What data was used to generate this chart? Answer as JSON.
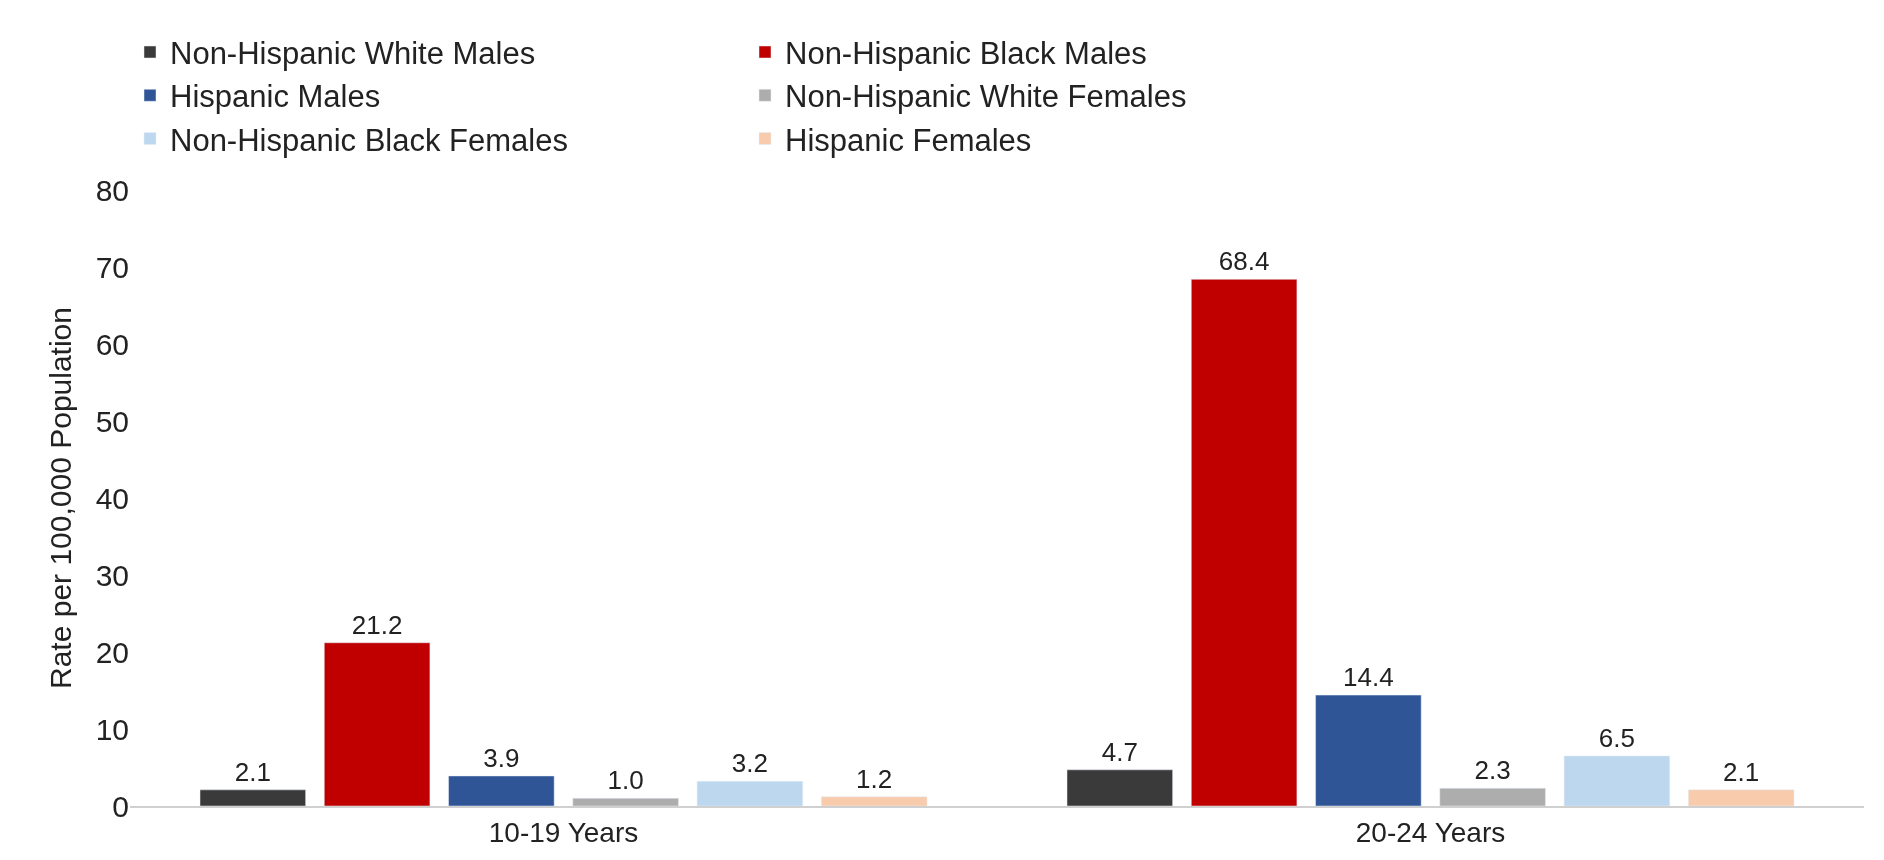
{
  "chart_data": {
    "type": "bar",
    "ylabel": "Rate per 100,000 Population",
    "categories": [
      "10-19 Years",
      "20-24 Years"
    ],
    "series": [
      {
        "name": "Non-Hispanic White Males",
        "color": "#3a3a3a",
        "values": [
          2.1,
          4.7
        ],
        "value_labels": [
          "2.1",
          "4.7"
        ]
      },
      {
        "name": "Non-Hispanic Black Males",
        "color": "#c00000",
        "values": [
          21.2,
          68.4
        ],
        "value_labels": [
          "21.2",
          "68.4"
        ]
      },
      {
        "name": "Hispanic Males",
        "color": "#2f5597",
        "values": [
          3.9,
          14.4
        ],
        "value_labels": [
          "3.9",
          "14.4"
        ]
      },
      {
        "name": "Non-Hispanic White Females",
        "color": "#adadad",
        "values": [
          1.0,
          2.3
        ],
        "value_labels": [
          "1.0",
          "2.3"
        ]
      },
      {
        "name": "Non-Hispanic Black Females",
        "color": "#bdd7ee",
        "values": [
          3.2,
          6.5
        ],
        "value_labels": [
          "3.2",
          "6.5"
        ]
      },
      {
        "name": "Hispanic Females",
        "color": "#f8cbad",
        "values": [
          1.2,
          2.1
        ],
        "value_labels": [
          "1.2",
          "2.1"
        ]
      }
    ],
    "ylim": [
      0,
      80
    ],
    "yticks": [
      0,
      10,
      20,
      30,
      40,
      50,
      60,
      70,
      80
    ],
    "legend": "top"
  }
}
